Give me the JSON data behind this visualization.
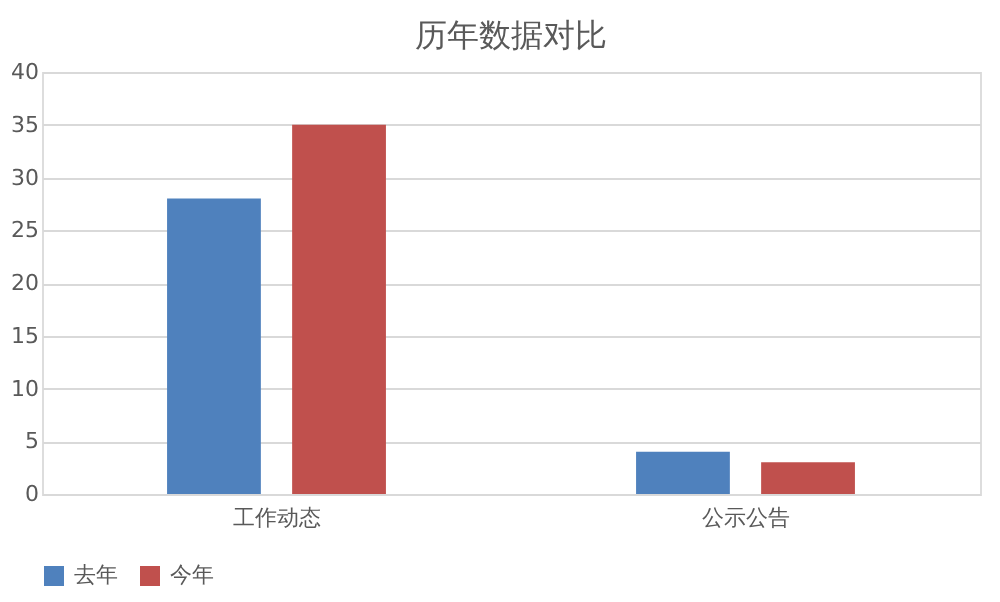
{
  "chart_data": {
    "type": "bar",
    "title": "历年数据对比",
    "categories": [
      "工作动态",
      "公示公告"
    ],
    "series": [
      {
        "name": "去年",
        "color": "#4f81bd",
        "values": [
          28,
          4
        ]
      },
      {
        "name": "今年",
        "color": "#c0504d",
        "values": [
          35,
          3
        ]
      }
    ],
    "ylim": [
      0,
      40
    ],
    "yticks": [
      0,
      5,
      10,
      15,
      20,
      25,
      30,
      35,
      40
    ],
    "grid": "y",
    "legend": "bottom"
  }
}
